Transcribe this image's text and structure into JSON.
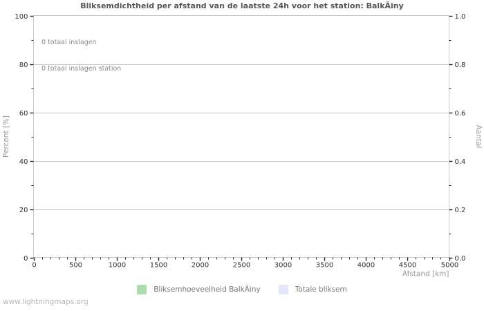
{
  "title": "Bliksemdichtheid per afstand van de laatste 24h voor het station: BalkÃiny",
  "watermark": "www.lightningmaps.org",
  "chart_data": {
    "type": "bar",
    "title": "Bliksemdichtheid per afstand van de laatste 24h voor het station: BalkÃiny",
    "annotations": [
      "0 totaal inslagen",
      "0 totaal inslagen station"
    ],
    "x_axis": {
      "label": "Afstand  [km]",
      "min": 0,
      "max": 5000,
      "major_step": 500,
      "minor_step": 100,
      "tick_labels": [
        "0",
        "500",
        "1000",
        "1500",
        "2000",
        "2500",
        "3000",
        "3500",
        "4000",
        "4500",
        "5000"
      ]
    },
    "y_axis_left": {
      "label": "Percent  [%]",
      "min": 0,
      "max": 100,
      "major_step": 20,
      "minor_step": 10,
      "tick_labels": [
        "0",
        "20",
        "40",
        "60",
        "80",
        "100"
      ]
    },
    "y_axis_right": {
      "label": "Aantal",
      "min": 0,
      "max": 1.0,
      "major_step": 0.2,
      "minor_step": 0.1,
      "tick_labels": [
        "0.0",
        "0.2",
        "0.4",
        "0.6",
        "0.8",
        "1.0"
      ]
    },
    "grid": "horizontal-major-only",
    "legend_position": "bottom-center",
    "series": [
      {
        "name": "Bliksemhoeveelheid BalkÃiny",
        "color": "#aedcae",
        "values": [],
        "total_strikes": 0
      },
      {
        "name": "Totale bliksem",
        "color": "#e6e6fa",
        "values": [],
        "total_strikes": 0
      }
    ],
    "colors": {
      "background": "#ffffff",
      "frame": "#c8c8c8",
      "grid": "#c8c8c8",
      "tick": "#222222",
      "tick_label": "#333333",
      "title": "#555555",
      "axis_unit_label": "#999999",
      "annotation": "#888888",
      "legend_label": "#777777",
      "watermark": "#b5b5b5"
    }
  }
}
